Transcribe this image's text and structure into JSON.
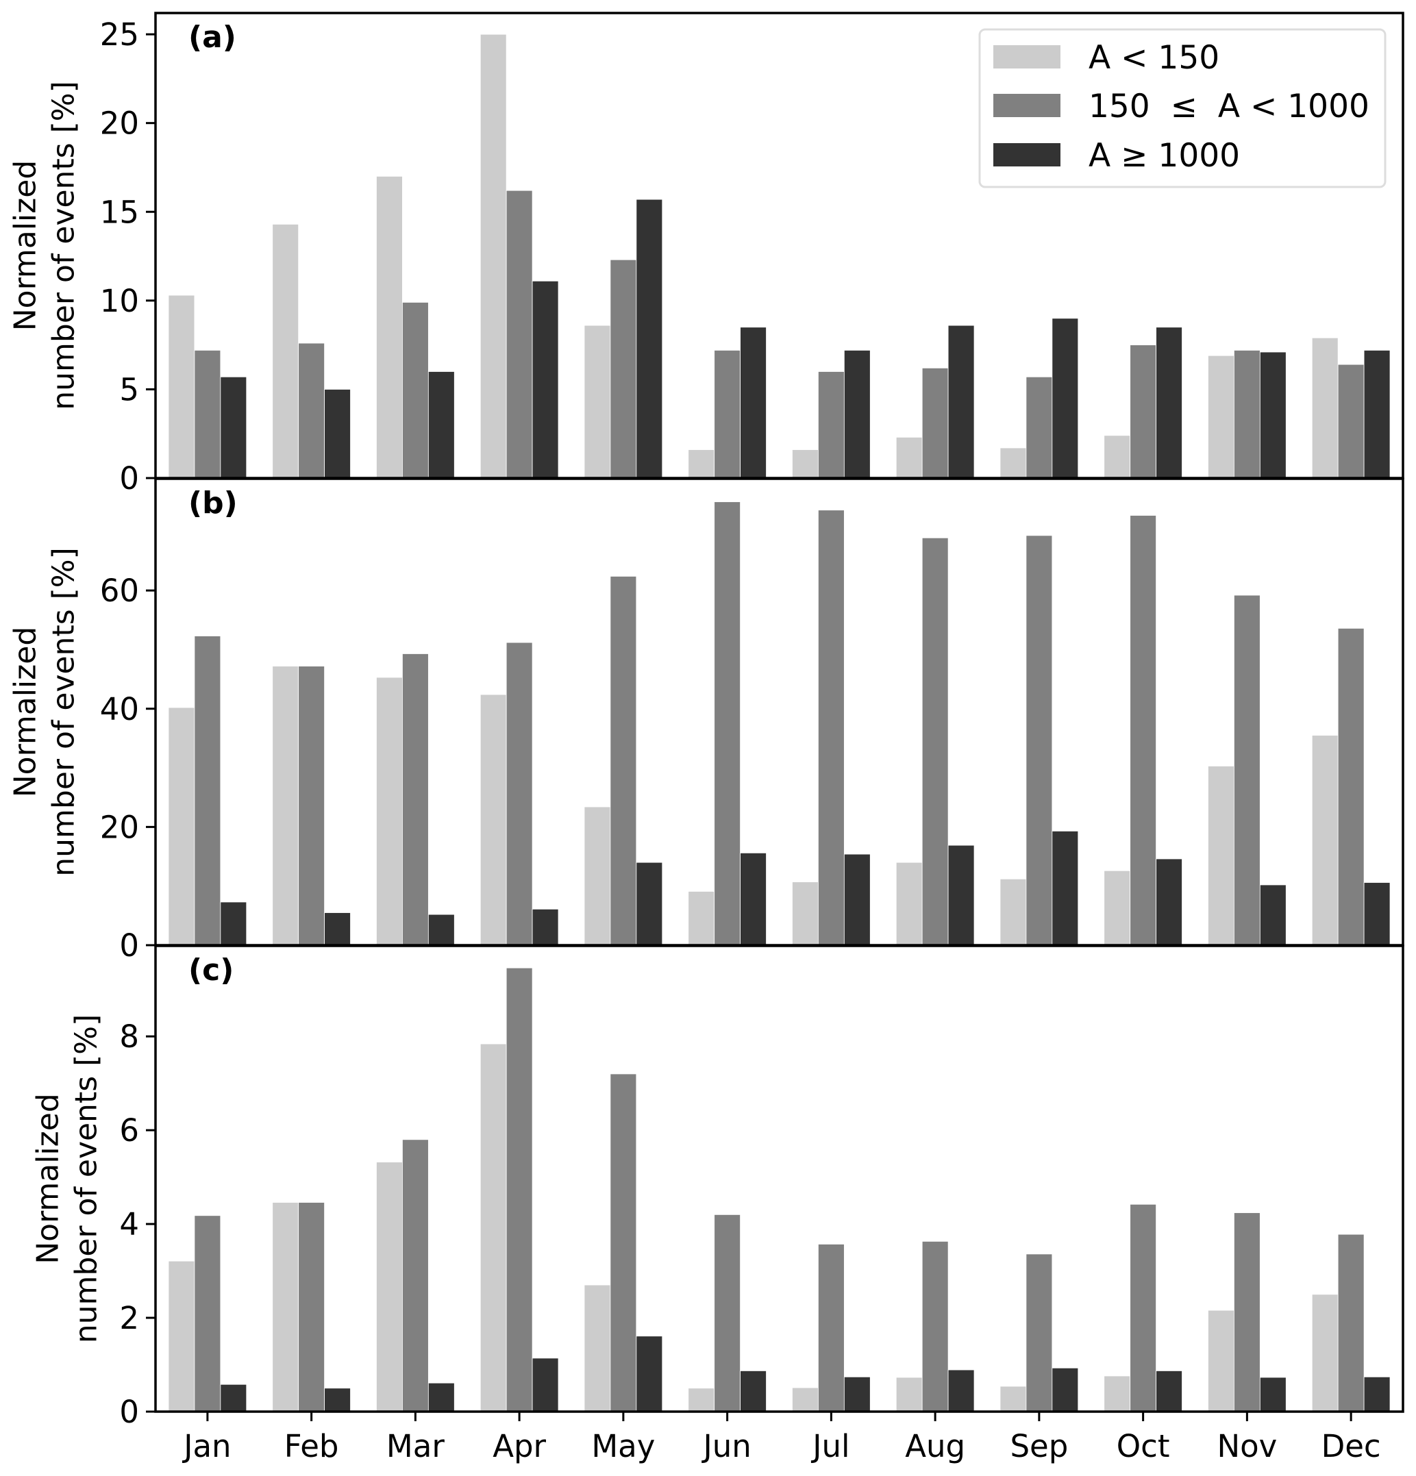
{
  "chart_data": {
    "type": "bar",
    "layout": "three vertically stacked panels sharing x-axis",
    "categories": [
      "Jan",
      "Feb",
      "Mar",
      "Apr",
      "May",
      "Jun",
      "Jul",
      "Aug",
      "Sep",
      "Oct",
      "Nov",
      "Dec"
    ],
    "legend": {
      "placement": "top-right of panel (a)",
      "entries": [
        {
          "label": "A < 150",
          "color": "#cccccc"
        },
        {
          "label": "150  ≤  A < 1000",
          "color": "#808080"
        },
        {
          "label": "A ≥ 1000",
          "color": "#333333"
        }
      ]
    },
    "panels": [
      {
        "label": "(a)",
        "ylabel_line1": "Normalized",
        "ylabel_line2": "number of events [%]",
        "ylim": [
          0,
          26.2
        ],
        "yticks": [
          0,
          5,
          10,
          15,
          20,
          25
        ],
        "series": [
          {
            "name": "A < 150",
            "values": [
              10.3,
              14.3,
              17.0,
              25.0,
              8.6,
              1.6,
              1.6,
              2.3,
              1.7,
              2.4,
              6.9,
              7.9
            ]
          },
          {
            "name": "150 ≤ A < 1000",
            "values": [
              7.2,
              7.6,
              9.9,
              16.2,
              12.3,
              7.2,
              6.0,
              6.2,
              5.7,
              7.5,
              7.2,
              6.4
            ]
          },
          {
            "name": "A ≥ 1000",
            "values": [
              5.7,
              5.0,
              6.0,
              11.1,
              15.7,
              8.5,
              7.2,
              8.6,
              9.0,
              8.5,
              7.1,
              7.2
            ]
          }
        ]
      },
      {
        "label": "(b)",
        "ylabel_line1": "Normalized",
        "ylabel_line2": "number of events [%]",
        "ylim": [
          0,
          78.9
        ],
        "yticks": [
          0,
          20,
          40,
          60
        ],
        "series": [
          {
            "name": "A < 150",
            "values": [
              40.2,
              47.2,
              45.3,
              42.4,
              23.4,
              9.1,
              10.7,
              14.0,
              11.2,
              12.6,
              30.3,
              35.5
            ]
          },
          {
            "name": "150 ≤ A < 1000",
            "values": [
              52.3,
              47.2,
              49.3,
              51.2,
              62.4,
              75.0,
              73.6,
              68.9,
              69.3,
              72.7,
              59.2,
              53.6
            ]
          },
          {
            "name": "A ≥ 1000",
            "values": [
              7.3,
              5.5,
              5.2,
              6.1,
              14.0,
              15.6,
              15.4,
              16.9,
              19.3,
              14.6,
              10.2,
              10.6
            ]
          }
        ]
      },
      {
        "label": "(c)",
        "ylabel_line1": "Normalized",
        "ylabel_line2": "number of events [%]",
        "ylim": [
          0,
          9.93
        ],
        "yticks": [
          0,
          2,
          4,
          6,
          8
        ],
        "series": [
          {
            "name": "A < 150",
            "values": [
              3.21,
              4.46,
              5.32,
              7.84,
              2.7,
              0.5,
              0.51,
              0.73,
              0.54,
              0.76,
              2.16,
              2.5
            ]
          },
          {
            "name": "150 ≤ A < 1000",
            "values": [
              4.18,
              4.46,
              5.8,
              9.46,
              7.2,
              4.2,
              3.57,
              3.63,
              3.36,
              4.42,
              4.24,
              3.78
            ]
          },
          {
            "name": "A ≥ 1000",
            "values": [
              0.58,
              0.5,
              0.61,
              1.14,
              1.61,
              0.87,
              0.74,
              0.89,
              0.93,
              0.87,
              0.73,
              0.74
            ]
          }
        ]
      }
    ],
    "xlabel": "",
    "grid": false
  }
}
